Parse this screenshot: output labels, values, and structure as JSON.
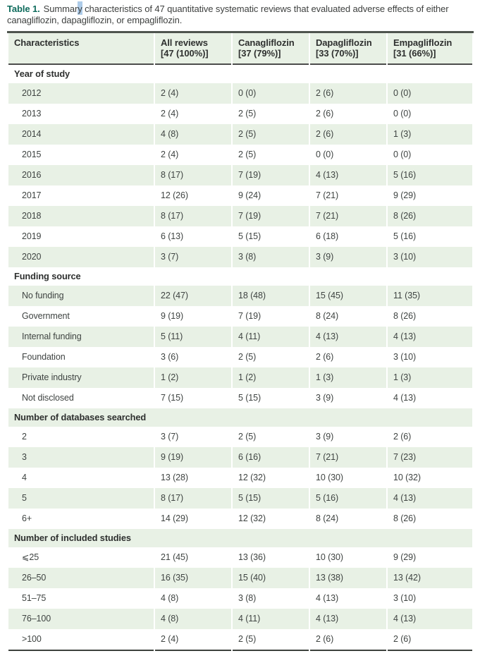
{
  "colors": {
    "accent_teal": "#0e6b5c",
    "row_green": "#e8f1e5",
    "selection_highlight_blue": "#aecce9",
    "text_dark": "#3f4140",
    "rule_dark": "#4c4c4c"
  },
  "caption": {
    "label": "Table 1.",
    "pre_highlight": "Summar",
    "highlighted": "y",
    "post_highlight": " characteristics of 47 quantitative systematic reviews that evaluated adverse effects of either canagliflozin, dapagliflozin, or empagliflozin."
  },
  "table": {
    "columns": [
      {
        "name": "Characteristics",
        "sub": ""
      },
      {
        "name": "All reviews",
        "sub": "[47 (100%)]"
      },
      {
        "name": "Canagliflozin",
        "sub": "[37 (79%)]"
      },
      {
        "name": "Dapagliflozin",
        "sub": "[33 (70%)]"
      },
      {
        "name": "Empagliflozin",
        "sub": "[31 (66%)]"
      }
    ],
    "sections": [
      {
        "header": "Year of study",
        "rows": [
          {
            "label": "2012",
            "values": [
              "2 (4)",
              "0 (0)",
              "2 (6)",
              "0 (0)"
            ]
          },
          {
            "label": "2013",
            "values": [
              "2 (4)",
              "2 (5)",
              "2 (6)",
              "0 (0)"
            ]
          },
          {
            "label": "2014",
            "values": [
              "4 (8)",
              "2 (5)",
              "2 (6)",
              "1 (3)"
            ]
          },
          {
            "label": "2015",
            "values": [
              "2 (4)",
              "2 (5)",
              "0 (0)",
              "0 (0)"
            ]
          },
          {
            "label": "2016",
            "values": [
              "8 (17)",
              "7 (19)",
              "4 (13)",
              "5 (16)"
            ]
          },
          {
            "label": "2017",
            "values": [
              "12 (26)",
              "9 (24)",
              "7 (21)",
              "9 (29)"
            ]
          },
          {
            "label": "2018",
            "values": [
              "8 (17)",
              "7 (19)",
              "7 (21)",
              "8 (26)"
            ]
          },
          {
            "label": "2019",
            "values": [
              "6 (13)",
              "5 (15)",
              "6 (18)",
              "5 (16)"
            ]
          },
          {
            "label": "2020",
            "values": [
              "3 (7)",
              "3 (8)",
              "3 (9)",
              "3 (10)"
            ]
          }
        ]
      },
      {
        "header": "Funding source",
        "rows": [
          {
            "label": "No funding",
            "values": [
              "22 (47)",
              "18 (48)",
              "15 (45)",
              "11 (35)"
            ]
          },
          {
            "label": "Government",
            "values": [
              "9 (19)",
              "7 (19)",
              "8 (24)",
              "8 (26)"
            ]
          },
          {
            "label": "Internal funding",
            "values": [
              "5 (11)",
              "4 (11)",
              "4 (13)",
              "4 (13)"
            ]
          },
          {
            "label": "Foundation",
            "values": [
              "3 (6)",
              "2 (5)",
              "2 (6)",
              "3 (10)"
            ]
          },
          {
            "label": "Private industry",
            "values": [
              "1 (2)",
              "1 (2)",
              "1 (3)",
              "1 (3)"
            ]
          },
          {
            "label": "Not disclosed",
            "values": [
              "7 (15)",
              "5 (15)",
              "3 (9)",
              "4 (13)"
            ]
          }
        ]
      },
      {
        "header": "Number of databases searched",
        "rows": [
          {
            "label": "2",
            "values": [
              "3 (7)",
              "2 (5)",
              "3 (9)",
              "2 (6)"
            ]
          },
          {
            "label": "3",
            "values": [
              "9 (19)",
              "6 (16)",
              "7 (21)",
              "7 (23)"
            ]
          },
          {
            "label": "4",
            "values": [
              "13 (28)",
              "12 (32)",
              "10 (30)",
              "10 (32)"
            ]
          },
          {
            "label": "5",
            "values": [
              "8 (17)",
              "5 (15)",
              "5 (16)",
              "4 (13)"
            ]
          },
          {
            "label": "6+",
            "values": [
              "14 (29)",
              "12 (32)",
              "8 (24)",
              "8 (26)"
            ]
          }
        ]
      },
      {
        "header": "Number of included studies",
        "rows": [
          {
            "label": "⩽25",
            "values": [
              "21 (45)",
              "13 (36)",
              "10 (30)",
              "9 (29)"
            ]
          },
          {
            "label": "26–50",
            "values": [
              "16 (35)",
              "15 (40)",
              "13 (38)",
              "13 (42)"
            ]
          },
          {
            "label": "51–75",
            "values": [
              "4 (8)",
              "3 (8)",
              "4 (13)",
              "3 (10)"
            ]
          },
          {
            "label": "76–100",
            "values": [
              "4 (8)",
              "4 (11)",
              "4 (13)",
              "4 (13)"
            ]
          },
          {
            "label": ">100",
            "values": [
              "2 (4)",
              "2 (5)",
              "2 (6)",
              "2 (6)"
            ]
          }
        ]
      }
    ]
  }
}
